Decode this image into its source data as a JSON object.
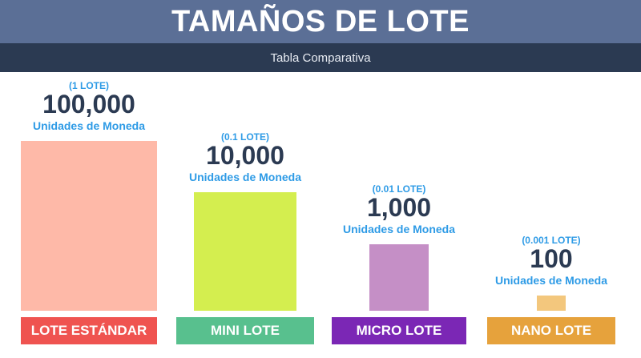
{
  "header": {
    "title": "TAMAÑOS DE LOTE",
    "subtitle": "Tabla Comparativa"
  },
  "colors": {
    "header_bg": "#5b6f96",
    "subheader_bg": "#2b3a52",
    "accent_text": "#2e9be6",
    "value_text": "#2b3a52"
  },
  "chart_data": {
    "type": "bar",
    "title": "TAMAÑOS DE LOTE",
    "subtitle": "Tabla Comparativa",
    "categories": [
      "LOTE ESTÁNDAR",
      "MINI LOTE",
      "MICRO LOTE",
      "NANO LOTE"
    ],
    "values": [
      100000,
      10000,
      1000,
      100
    ],
    "value_labels": [
      "100,000",
      "10,000",
      "1,000",
      "100"
    ],
    "lot_labels": [
      "(1 LOTE)",
      "(0.1 LOTE)",
      "(0.01 LOTE)",
      "(0.001 LOTE)"
    ],
    "unit_label": "Unidades de Moneda",
    "scale": "log",
    "bar_colors": [
      "#feb9a8",
      "#d4ee4f",
      "#c58fc6",
      "#f3c77d"
    ],
    "button_colors": [
      "#ef5350",
      "#58c08e",
      "#7b27b5",
      "#e6a23c"
    ]
  }
}
